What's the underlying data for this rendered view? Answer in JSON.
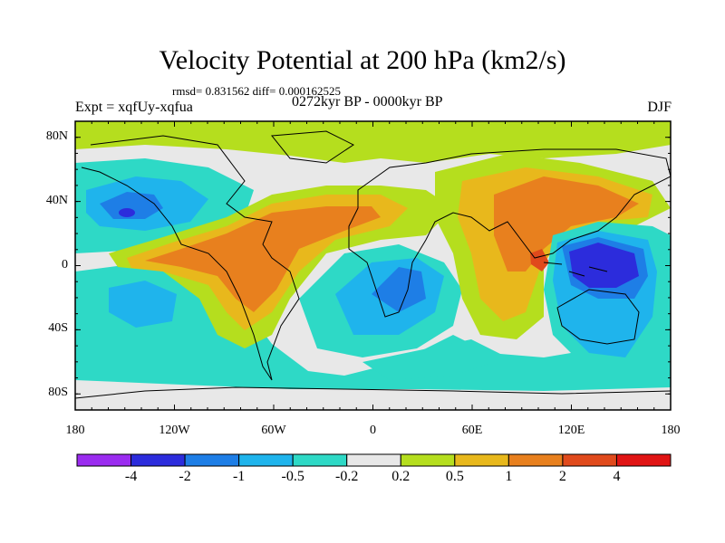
{
  "title": "Velocity Potential at 200 hPa (km2/s)",
  "stats": "rmsd= 0.831562 diff= 0.000162525",
  "experiment": "Expt = xqfUy-xqfua",
  "period": "0272kyr BP - 0000kyr BP",
  "season": "DJF",
  "axes": {
    "lat_ticks": [
      {
        "label": "80N",
        "value": 80
      },
      {
        "label": "40N",
        "value": 40
      },
      {
        "label": "0",
        "value": 0
      },
      {
        "label": "40S",
        "value": -40
      },
      {
        "label": "80S",
        "value": -80
      }
    ],
    "lon_ticks": [
      {
        "label": "180",
        "value": -180
      },
      {
        "label": "120W",
        "value": -120
      },
      {
        "label": "60W",
        "value": -60
      },
      {
        "label": "0",
        "value": 0
      },
      {
        "label": "60E",
        "value": 60
      },
      {
        "label": "120E",
        "value": 120
      },
      {
        "label": "180",
        "value": 180
      }
    ]
  },
  "colorbar": {
    "colors": [
      "#9b2cf0",
      "#2c2cdc",
      "#1e7ee6",
      "#1fb4ec",
      "#2ed9c6",
      "#e8e8e8",
      "#b5de1e",
      "#e8b81c",
      "#e8801e",
      "#e04a1c",
      "#e01414"
    ],
    "labels": [
      "-4",
      "-2",
      "-1",
      "-0.5",
      "-0.2",
      "0.2",
      "0.5",
      "1",
      "2",
      "4"
    ]
  },
  "map_data": {
    "extent": {
      "lon": [
        -180,
        180
      ],
      "lat": [
        -90,
        90
      ]
    },
    "features": [
      {
        "name": "north-pacific-negative",
        "center": [
          -150,
          35
        ],
        "peak": -1.2
      },
      {
        "name": "americas-atlantic-africa-positive",
        "center": [
          -60,
          10
        ],
        "peak": 1.5
      },
      {
        "name": "south-atlantic-africa-negative",
        "center": [
          15,
          -15
        ],
        "peak": -1.0
      },
      {
        "name": "asia-indian-ocean-positive",
        "center": [
          75,
          25
        ],
        "peak": 1.6
      },
      {
        "name": "maritime-continent-negative",
        "center": [
          140,
          0
        ],
        "peak": -2.5
      },
      {
        "name": "southeast-asia-positive-max",
        "center": [
          100,
          0
        ],
        "peak": 2.5
      }
    ]
  }
}
